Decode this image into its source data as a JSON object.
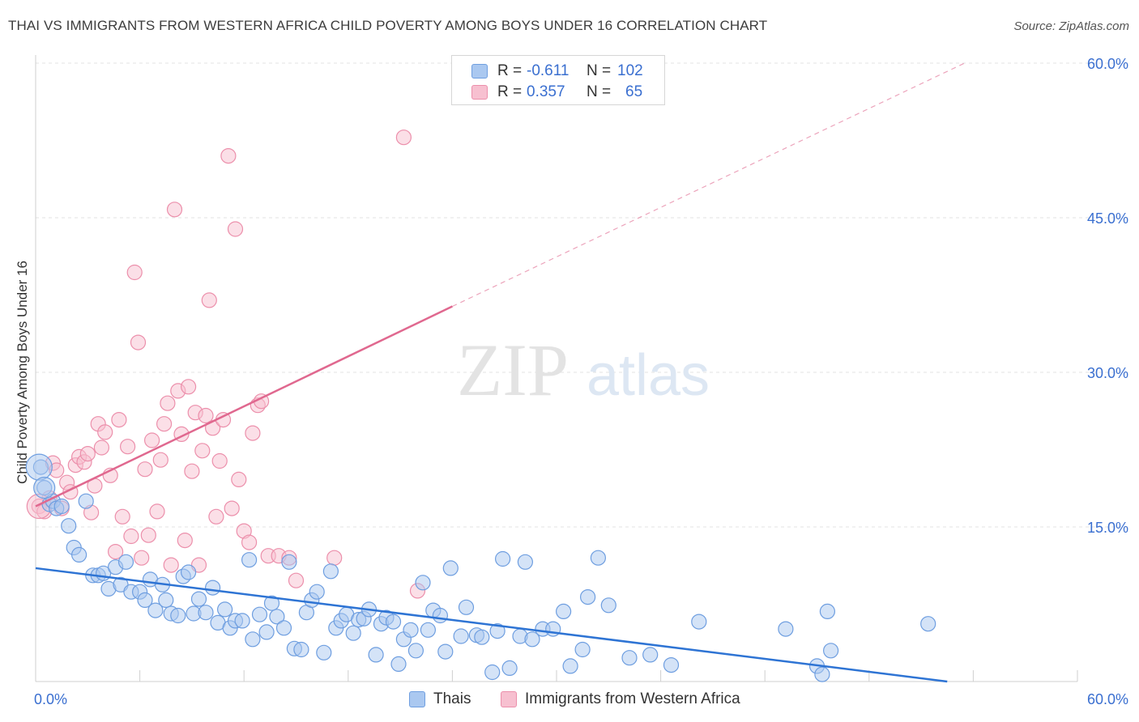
{
  "header": {
    "title": "THAI VS IMMIGRANTS FROM WESTERN AFRICA CHILD POVERTY AMONG BOYS UNDER 16 CORRELATION CHART",
    "source": "Source: ZipAtlas.com"
  },
  "watermark": {
    "zip": "ZIP",
    "atlas": "atlas"
  },
  "legend": {
    "r_label": "R =",
    "n_label": "N =",
    "rows": [
      {
        "r": "-0.611",
        "n": "102",
        "fill": "#aac8f0",
        "stroke": "#6f9fe0"
      },
      {
        "r": "0.357",
        "n": "65",
        "fill": "#f7c0d0",
        "stroke": "#ec8fab"
      }
    ]
  },
  "colors": {
    "thai_fill": "#aac8f0",
    "thai_stroke": "#6e9ee0",
    "thai_line": "#2e74d4",
    "waf_fill": "#f7c0d0",
    "waf_stroke": "#ec8fab",
    "waf_line": "#e0688f",
    "tick_label": "#3a6fd0"
  },
  "chart_data": {
    "type": "scatter",
    "title": "THAI VS IMMIGRANTS FROM WESTERN AFRICA CHILD POVERTY AMONG BOYS UNDER 16 CORRELATION CHART",
    "xlabel": "",
    "ylabel": "Child Poverty Among Boys Under 16",
    "xlim": [
      0,
      60
    ],
    "ylim": [
      0,
      60
    ],
    "x_tick_labels": [
      "0.0%",
      "60.0%"
    ],
    "y_ticks": [
      15,
      30,
      45,
      60
    ],
    "y_tick_labels": [
      "15.0%",
      "30.0%",
      "45.0%",
      "60.0%"
    ],
    "grid": true,
    "legend_position": "top-center",
    "series": [
      {
        "name": "Thais",
        "r": -0.611,
        "n": 102,
        "trend": {
          "x0": 0,
          "y0": 11.0,
          "x1": 52.5,
          "y1": 0.0,
          "dashed_extension_to": null
        },
        "points": [
          [
            0.3,
            20.8
          ],
          [
            0.5,
            18.8
          ],
          [
            0.8,
            17.2
          ],
          [
            1.0,
            17.5
          ],
          [
            1.2,
            16.8
          ],
          [
            1.5,
            17.0
          ],
          [
            1.9,
            15.1
          ],
          [
            2.2,
            13.0
          ],
          [
            2.5,
            12.3
          ],
          [
            2.9,
            17.5
          ],
          [
            3.3,
            10.3
          ],
          [
            3.6,
            10.3
          ],
          [
            3.9,
            10.5
          ],
          [
            4.2,
            9.0
          ],
          [
            4.6,
            11.1
          ],
          [
            4.9,
            9.4
          ],
          [
            5.2,
            11.6
          ],
          [
            5.5,
            8.7
          ],
          [
            6.0,
            8.7
          ],
          [
            6.3,
            7.9
          ],
          [
            6.6,
            9.9
          ],
          [
            6.9,
            6.9
          ],
          [
            7.3,
            9.4
          ],
          [
            7.5,
            7.9
          ],
          [
            7.8,
            6.6
          ],
          [
            8.2,
            6.4
          ],
          [
            8.5,
            10.2
          ],
          [
            8.8,
            10.6
          ],
          [
            9.1,
            6.6
          ],
          [
            9.4,
            8.0
          ],
          [
            9.8,
            6.7
          ],
          [
            10.2,
            9.1
          ],
          [
            10.5,
            5.7
          ],
          [
            10.9,
            7.0
          ],
          [
            11.2,
            5.2
          ],
          [
            11.5,
            5.9
          ],
          [
            11.9,
            5.9
          ],
          [
            12.3,
            11.8
          ],
          [
            12.5,
            4.1
          ],
          [
            12.9,
            6.5
          ],
          [
            13.3,
            4.8
          ],
          [
            13.6,
            7.6
          ],
          [
            13.9,
            6.3
          ],
          [
            14.3,
            5.2
          ],
          [
            14.6,
            11.6
          ],
          [
            14.9,
            3.2
          ],
          [
            15.3,
            3.1
          ],
          [
            15.6,
            6.7
          ],
          [
            15.9,
            7.9
          ],
          [
            16.2,
            8.7
          ],
          [
            16.6,
            2.8
          ],
          [
            17.0,
            10.7
          ],
          [
            17.3,
            5.2
          ],
          [
            17.6,
            5.9
          ],
          [
            17.9,
            6.5
          ],
          [
            18.3,
            4.7
          ],
          [
            18.6,
            6.0
          ],
          [
            18.9,
            6.1
          ],
          [
            19.2,
            7.0
          ],
          [
            19.6,
            2.6
          ],
          [
            19.9,
            5.6
          ],
          [
            20.2,
            6.2
          ],
          [
            20.6,
            5.8
          ],
          [
            20.9,
            1.7
          ],
          [
            21.2,
            4.1
          ],
          [
            21.6,
            5.0
          ],
          [
            21.9,
            3.0
          ],
          [
            22.3,
            9.6
          ],
          [
            22.6,
            5.0
          ],
          [
            22.9,
            6.9
          ],
          [
            23.3,
            6.4
          ],
          [
            23.6,
            2.9
          ],
          [
            23.9,
            11.0
          ],
          [
            24.5,
            4.4
          ],
          [
            24.8,
            7.2
          ],
          [
            25.4,
            4.5
          ],
          [
            25.7,
            4.3
          ],
          [
            26.3,
            0.9
          ],
          [
            26.6,
            4.9
          ],
          [
            26.9,
            11.9
          ],
          [
            27.3,
            1.3
          ],
          [
            27.9,
            4.4
          ],
          [
            28.2,
            11.6
          ],
          [
            28.6,
            4.1
          ],
          [
            29.2,
            5.1
          ],
          [
            29.8,
            5.1
          ],
          [
            30.4,
            6.8
          ],
          [
            30.8,
            1.5
          ],
          [
            31.5,
            3.1
          ],
          [
            31.8,
            8.2
          ],
          [
            32.4,
            12.0
          ],
          [
            33.0,
            7.4
          ],
          [
            34.2,
            2.3
          ],
          [
            35.4,
            2.6
          ],
          [
            36.6,
            1.6
          ],
          [
            38.2,
            5.8
          ],
          [
            43.2,
            5.1
          ],
          [
            45.0,
            1.5
          ],
          [
            45.3,
            0.7
          ],
          [
            45.6,
            6.8
          ],
          [
            45.8,
            3.0
          ],
          [
            51.4,
            5.6
          ]
        ]
      },
      {
        "name": "Immigrants from Western Africa",
        "r": 0.357,
        "n": 65,
        "trend": {
          "x0": 0,
          "y0": 17.0,
          "x1": 24,
          "y1": 36.4,
          "dashed_extension_to": [
            53.5,
            60.0
          ]
        },
        "points": [
          [
            0.2,
            17.0
          ],
          [
            0.5,
            16.5
          ],
          [
            0.8,
            17.8
          ],
          [
            1.0,
            21.2
          ],
          [
            1.2,
            20.5
          ],
          [
            1.5,
            16.8
          ],
          [
            1.8,
            19.3
          ],
          [
            2.0,
            18.4
          ],
          [
            2.3,
            21.0
          ],
          [
            2.5,
            21.8
          ],
          [
            2.8,
            21.3
          ],
          [
            3.0,
            22.1
          ],
          [
            3.2,
            16.4
          ],
          [
            3.4,
            19.0
          ],
          [
            3.6,
            25.0
          ],
          [
            3.8,
            22.7
          ],
          [
            4.0,
            24.2
          ],
          [
            4.3,
            20.0
          ],
          [
            4.6,
            12.6
          ],
          [
            4.8,
            25.4
          ],
          [
            5.0,
            16.0
          ],
          [
            5.3,
            22.8
          ],
          [
            5.5,
            14.1
          ],
          [
            5.7,
            39.7
          ],
          [
            5.9,
            32.9
          ],
          [
            6.1,
            12.0
          ],
          [
            6.3,
            20.6
          ],
          [
            6.5,
            14.2
          ],
          [
            6.7,
            23.4
          ],
          [
            7.0,
            16.5
          ],
          [
            7.2,
            21.5
          ],
          [
            7.4,
            25.0
          ],
          [
            7.6,
            27.0
          ],
          [
            7.8,
            11.3
          ],
          [
            8.0,
            45.8
          ],
          [
            8.2,
            28.2
          ],
          [
            8.4,
            24.0
          ],
          [
            8.6,
            13.7
          ],
          [
            8.8,
            28.6
          ],
          [
            9.0,
            20.4
          ],
          [
            9.2,
            26.1
          ],
          [
            9.4,
            11.3
          ],
          [
            9.6,
            22.4
          ],
          [
            9.8,
            25.8
          ],
          [
            10.0,
            37.0
          ],
          [
            10.2,
            24.6
          ],
          [
            10.4,
            16.0
          ],
          [
            10.6,
            21.4
          ],
          [
            10.8,
            25.4
          ],
          [
            11.1,
            51.0
          ],
          [
            11.3,
            16.8
          ],
          [
            11.5,
            43.9
          ],
          [
            11.7,
            19.6
          ],
          [
            12.0,
            14.6
          ],
          [
            12.3,
            13.5
          ],
          [
            12.5,
            24.1
          ],
          [
            12.8,
            26.8
          ],
          [
            13.0,
            27.2
          ],
          [
            13.4,
            12.2
          ],
          [
            14.0,
            12.2
          ],
          [
            14.6,
            12.0
          ],
          [
            15.0,
            9.8
          ],
          [
            17.2,
            12.0
          ],
          [
            21.2,
            52.8
          ],
          [
            22.0,
            8.8
          ]
        ]
      }
    ]
  },
  "bottom_legend": [
    {
      "label": "Thais"
    },
    {
      "label": "Immigrants from Western Africa"
    }
  ]
}
